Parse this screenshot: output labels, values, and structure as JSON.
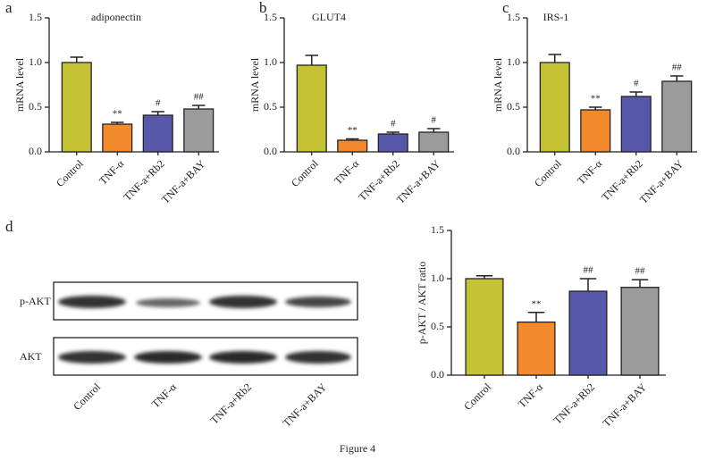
{
  "chart_data": [
    {
      "type": "bar",
      "panel": "a",
      "title": "adiponectin",
      "ylabel": "mRNA level",
      "categories": [
        "Control",
        "TNF-α",
        "TNF-a+Rb2",
        "TNF-a+BAY"
      ],
      "values": [
        1.0,
        0.31,
        0.41,
        0.48
      ],
      "errors": [
        0.06,
        0.02,
        0.04,
        0.04
      ],
      "annotations": [
        null,
        "**",
        "#",
        "##"
      ],
      "colors": [
        "#c5c233",
        "#f28a2c",
        "#5659a9",
        "#9b9b9b"
      ],
      "ylim": [
        0,
        1.5
      ],
      "yticks": [
        {
          "value": 0,
          "label": "0.0"
        },
        0.5,
        {
          "value": 1,
          "label": "1.0"
        },
        1.5
      ]
    },
    {
      "type": "bar",
      "panel": "b",
      "title": "GLUT4",
      "ylabel": "mRNA level",
      "categories": [
        "Control",
        "TNF-α",
        "TNF-a+Rb2",
        "TNF-a+BAY"
      ],
      "values": [
        0.97,
        0.13,
        0.2,
        0.22
      ],
      "errors": [
        0.11,
        0.015,
        0.02,
        0.04
      ],
      "annotations": [
        null,
        "**",
        "#",
        "#"
      ],
      "colors": [
        "#c5c233",
        "#f28a2c",
        "#5659a9",
        "#9b9b9b"
      ],
      "ylim": [
        0,
        1.5
      ],
      "yticks": [
        {
          "value": 0,
          "label": "0.0"
        },
        0.5,
        {
          "value": 1,
          "label": "1.0"
        },
        1.5
      ]
    },
    {
      "type": "bar",
      "panel": "c",
      "title": "IRS-1",
      "ylabel": "mRNA level",
      "categories": [
        "Control",
        "TNF-α",
        "TNF-a+Rb2",
        "TNF-a+BAY"
      ],
      "values": [
        1.0,
        0.47,
        0.62,
        0.79
      ],
      "errors": [
        0.09,
        0.03,
        0.05,
        0.06
      ],
      "annotations": [
        null,
        "**",
        "#",
        "##"
      ],
      "colors": [
        "#c5c233",
        "#f28a2c",
        "#5659a9",
        "#9b9b9b"
      ],
      "ylim": [
        0,
        1.5
      ],
      "yticks": [
        {
          "value": 0,
          "label": "0.0"
        },
        0.5,
        {
          "value": 1,
          "label": "1.0"
        },
        1.5
      ]
    },
    {
      "type": "bar",
      "panel": "d",
      "ylabel": "p-AKT / AKT ratio",
      "categories": [
        "Control",
        "TNF-α",
        "TNF-a+Rb2",
        "TNF-a+BAY"
      ],
      "values": [
        1.0,
        0.55,
        0.87,
        0.91
      ],
      "errors": [
        0.03,
        0.1,
        0.13,
        0.08
      ],
      "annotations": [
        null,
        "**",
        "##",
        "##"
      ],
      "colors": [
        "#c5c233",
        "#f28a2c",
        "#5659a9",
        "#9b9b9b"
      ],
      "ylim": [
        0,
        1.5
      ],
      "yticks": [
        {
          "value": 0,
          "label": "0.0"
        },
        0.5,
        {
          "value": 1,
          "label": "1.0"
        },
        1.5
      ]
    }
  ],
  "blot": {
    "rows": [
      "p-AKT",
      "AKT"
    ],
    "lanes": [
      "Control",
      "TNF-α",
      "TNF-a+Rb2",
      "TNF-a+BAY"
    ]
  },
  "caption": "Figure 4"
}
